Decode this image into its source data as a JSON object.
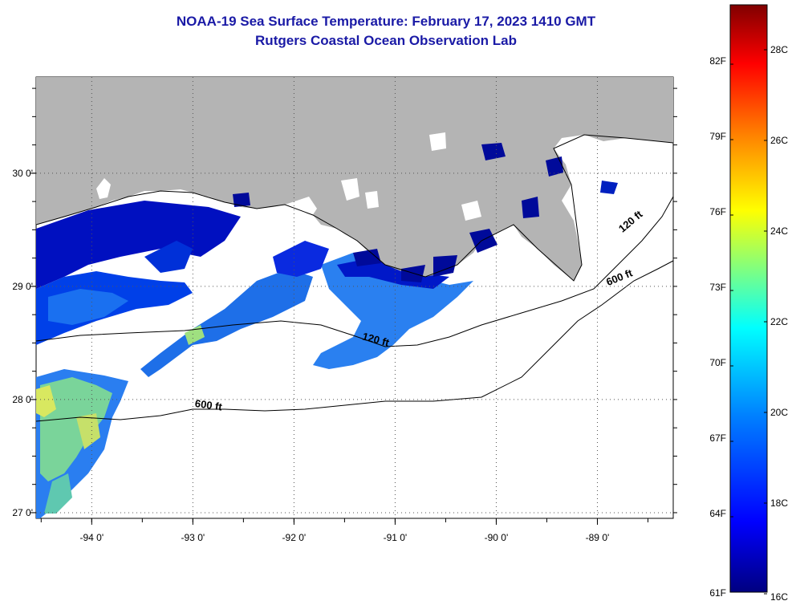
{
  "title": "NOAA-19 Sea Surface Temperature:  February 17, 2023 1410 GMT",
  "subtitle": "Rutgers Coastal Ocean Observation Lab",
  "map": {
    "x_ticks": [
      "-94 0'",
      "-93 0'",
      "-92 0'",
      "-91 0'",
      "-90 0'",
      "-89 0'"
    ],
    "y_ticks": [
      "30 0'",
      "29 0'",
      "28 0'",
      "27 0'"
    ],
    "lon_values": [
      -94,
      -93,
      -92,
      -91,
      -90,
      -89
    ],
    "lat_values": [
      30,
      29,
      28,
      27
    ],
    "lon_range": [
      -94.55,
      -88.25
    ],
    "lat_range": [
      26.95,
      30.85
    ],
    "contour_labels": [
      {
        "text": "120 ft"
      },
      {
        "text": "600 ft"
      },
      {
        "text": "120 ft"
      },
      {
        "text": "600 ft"
      }
    ],
    "land_color": "#b4b4b4",
    "ocean_color": "#ffffff"
  },
  "colorbar": {
    "f_labels": [
      "82F",
      "79F",
      "76F",
      "73F",
      "70F",
      "67F",
      "64F",
      "61F"
    ],
    "c_labels": [
      "28C",
      "26C",
      "24C",
      "22C",
      "20C",
      "18C",
      "16C"
    ],
    "colors": [
      "#800000",
      "#ff0000",
      "#ff8000",
      "#ffff00",
      "#80ff80",
      "#00ffff",
      "#0080ff",
      "#0000ff",
      "#000080"
    ]
  }
}
